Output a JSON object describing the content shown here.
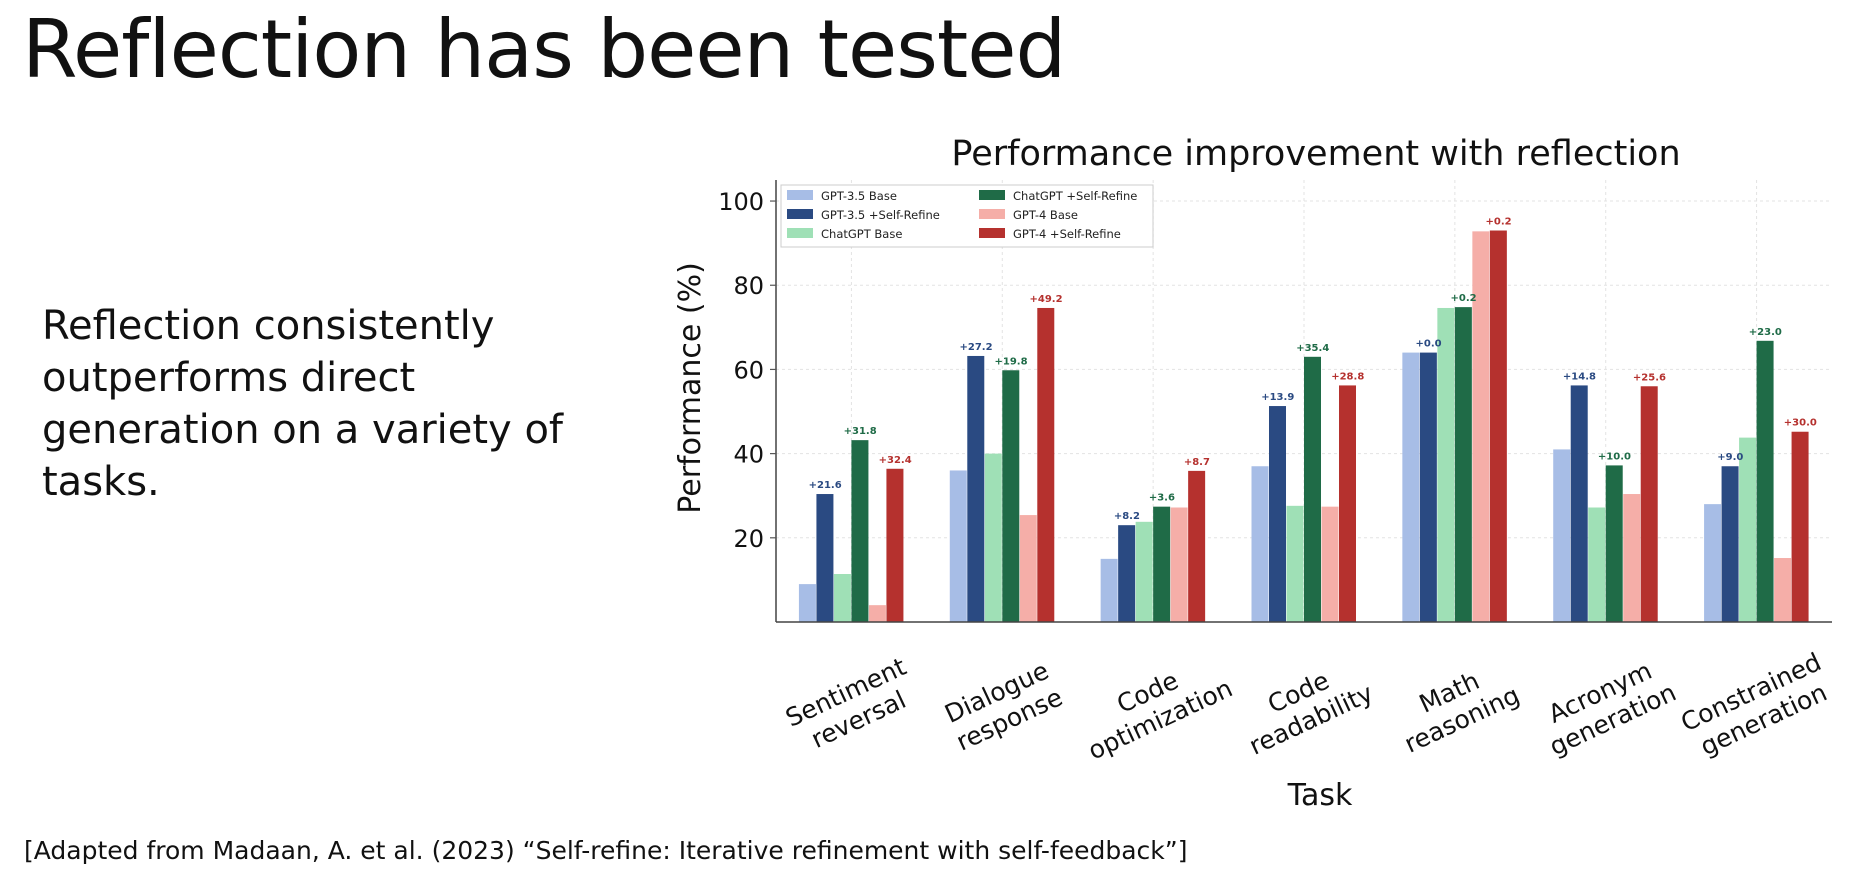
{
  "slide": {
    "title": "Reflection has been tested",
    "body": "Reflection consistently outperforms direct generation on a variety of tasks.",
    "citation": "[Adapted from Madaan, A. et al. (2023) “Self-refine: Iterative refinement with self-feedback”]"
  },
  "chart_data": {
    "type": "bar",
    "title": "Performance improvement with reflection",
    "xlabel": "Task",
    "ylabel": "Performance (%)",
    "ylim": [
      0,
      105
    ],
    "yticks": [
      20,
      40,
      60,
      80,
      100
    ],
    "grid": true,
    "legend_position": "top-left",
    "categories": [
      [
        "Sentiment",
        "reversal"
      ],
      [
        "Dialogue",
        "response"
      ],
      [
        "Code",
        "optimization"
      ],
      [
        "Code",
        "readability"
      ],
      [
        "Math",
        "reasoning"
      ],
      [
        "Acronym",
        "generation"
      ],
      [
        "Constrained",
        "generation"
      ]
    ],
    "series": [
      {
        "name": "GPT-3.5 Base",
        "color": "#a7bde6",
        "values": [
          9,
          36,
          15,
          37,
          64,
          41,
          28
        ]
      },
      {
        "name": "GPT-3.5 +Self-Refine",
        "color": "#2a4a82",
        "values": [
          30.4,
          63.2,
          23.0,
          51.3,
          64.0,
          56.2,
          37.0
        ],
        "improvement_labels": [
          "+21.6",
          "+27.2",
          "+8.2",
          "+13.9",
          "+0.0",
          "+14.8",
          "+9.0"
        ],
        "label_color": "#2a4a82"
      },
      {
        "name": "ChatGPT Base",
        "color": "#9fe0b6",
        "values": [
          11.4,
          40,
          23.8,
          27.6,
          74.6,
          27.2,
          43.8
        ]
      },
      {
        "name": "ChatGPT +Self-Refine",
        "color": "#1f6b47",
        "values": [
          43.2,
          59.8,
          27.4,
          63.0,
          74.8,
          37.2,
          66.8
        ],
        "improvement_labels": [
          "+31.8",
          "+19.8",
          "+3.6",
          "+35.4",
          "+0.2",
          "+10.0",
          "+23.0"
        ],
        "label_color": "#1f6b47"
      },
      {
        "name": "GPT-4 Base",
        "color": "#f5aea8",
        "values": [
          4,
          25.4,
          27.2,
          27.4,
          92.8,
          30.4,
          15.2
        ]
      },
      {
        "name": "GPT-4 +Self-Refine",
        "color": "#b5312e",
        "values": [
          36.4,
          74.6,
          35.9,
          56.2,
          93.0,
          56.0,
          45.2
        ],
        "improvement_labels": [
          "+32.4",
          "+49.2",
          "+8.7",
          "+28.8",
          "+0.2",
          "+25.6",
          "+30.0"
        ],
        "label_color": "#b5312e"
      }
    ],
    "legend": [
      "GPT-3.5 Base",
      "GPT-3.5 +Self-Refine",
      "ChatGPT Base",
      "ChatGPT +Self-Refine",
      "GPT-4 Base",
      "GPT-4 +Self-Refine"
    ]
  }
}
